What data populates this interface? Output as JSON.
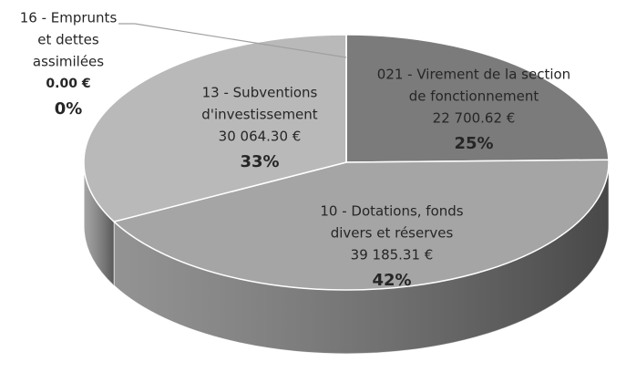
{
  "chart_data": {
    "type": "pie",
    "categories": [
      [
        "021 - Virement de la section",
        "de fonctionnement"
      ],
      [
        "10 - Dotations, fonds",
        "divers et réserves"
      ],
      [
        "13 - Subventions",
        "d'investissement"
      ],
      [
        "16 - Emprunts",
        "et dettes",
        "assimilées"
      ]
    ],
    "values": [
      22700.62,
      39185.31,
      30064.3,
      0
    ],
    "value_labels": [
      "22 700.62 €",
      "39 185.31 €",
      "30 064.30 €",
      "0.00 €"
    ],
    "percent_labels": [
      "25%",
      "42%",
      "33%",
      "0%"
    ],
    "colors": [
      "#7b7b7b",
      "#a5a5a5",
      "#b9b9b9",
      "#c8c8c8"
    ],
    "side_colors": [
      "#4f4f4f",
      "#6f6f6f",
      "#878787",
      "#999999"
    ]
  }
}
